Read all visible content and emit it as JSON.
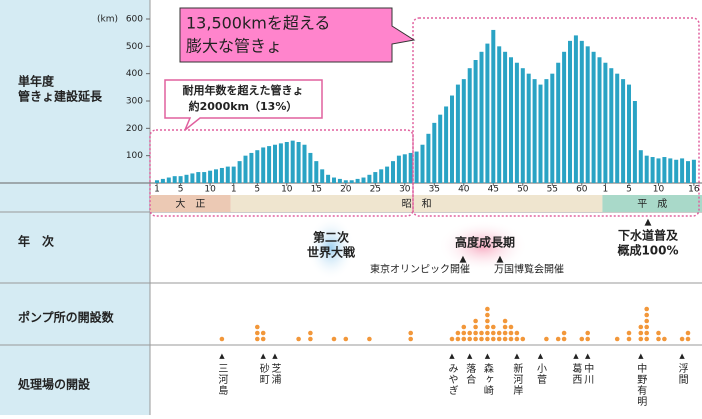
{
  "chart_data": {
    "type": "bar",
    "y_unit": "(km)",
    "row_labels": {
      "length": [
        "単年度",
        "管きょ建設延長"
      ],
      "year": "年　次",
      "pumps": "ポンプ所の開設数",
      "plants": "処理場の開設"
    },
    "categories": [
      "1",
      null,
      null,
      null,
      "5",
      null,
      null,
      null,
      null,
      "10",
      null,
      null,
      null,
      "1",
      null,
      null,
      null,
      "5",
      null,
      null,
      null,
      null,
      "10",
      null,
      null,
      null,
      null,
      "15",
      null,
      null,
      null,
      null,
      "20",
      null,
      null,
      null,
      null,
      "25",
      null,
      null,
      null,
      null,
      "30",
      null,
      null,
      null,
      null,
      "35",
      null,
      null,
      null,
      null,
      "40",
      null,
      null,
      null,
      null,
      "45",
      null,
      null,
      null,
      null,
      "50",
      null,
      null,
      null,
      null,
      "55",
      null,
      null,
      null,
      null,
      "60",
      null,
      null,
      null,
      "1",
      null,
      null,
      null,
      "5",
      null,
      null,
      null,
      null,
      "10",
      null,
      null,
      null,
      null,
      null,
      "16"
    ],
    "values": [
      10,
      15,
      20,
      25,
      25,
      30,
      35,
      40,
      40,
      45,
      50,
      55,
      60,
      60,
      80,
      100,
      110,
      120,
      130,
      135,
      140,
      145,
      150,
      155,
      150,
      140,
      110,
      80,
      50,
      30,
      20,
      15,
      10,
      10,
      15,
      20,
      30,
      40,
      50,
      60,
      80,
      100,
      105,
      110,
      115,
      140,
      180,
      220,
      250,
      280,
      320,
      360,
      380,
      420,
      450,
      480,
      510,
      560,
      500,
      480,
      460,
      440,
      420,
      400,
      380,
      360,
      380,
      400,
      440,
      480,
      520,
      540,
      520,
      500,
      480,
      460,
      440,
      420,
      400,
      380,
      360,
      300,
      120,
      100,
      95,
      90,
      95,
      90,
      85,
      90,
      80,
      85
    ],
    "color": "#2aa3c4",
    "ylim": [
      0,
      600
    ],
    "yticks": [
      100,
      200,
      300,
      400,
      500,
      600
    ],
    "eras": [
      "大　正",
      "昭　和",
      "平　成"
    ],
    "era_colors": [
      "#ecc9b4",
      "#efe5cf",
      "#a9d9c9"
    ],
    "pump_counts": [
      0,
      0,
      0,
      0,
      0,
      0,
      0,
      0,
      0,
      0,
      0,
      1,
      0,
      0,
      0,
      0,
      0,
      3,
      2,
      0,
      0,
      0,
      0,
      0,
      1,
      0,
      2,
      0,
      0,
      0,
      1,
      0,
      1,
      0,
      0,
      0,
      1,
      0,
      0,
      0,
      0,
      0,
      0,
      2,
      0,
      0,
      0,
      0,
      0,
      0,
      1,
      2,
      3,
      2,
      4,
      2,
      6,
      3,
      2,
      4,
      3,
      2,
      1,
      0,
      0,
      0,
      1,
      0,
      1,
      2,
      0,
      0,
      1,
      2,
      0,
      0,
      0,
      0,
      1,
      0,
      2,
      0,
      3,
      6,
      0,
      2,
      1,
      0,
      0,
      1,
      2,
      0
    ],
    "pump_color": "#f2973a",
    "plants": [
      null,
      null,
      null,
      null,
      null,
      null,
      null,
      null,
      null,
      null,
      null,
      "三河島",
      null,
      null,
      null,
      null,
      null,
      null,
      "砂町",
      null,
      "芝浦",
      null,
      null,
      null,
      null,
      null,
      null,
      null,
      null,
      null,
      null,
      null,
      null,
      null,
      null,
      null,
      null,
      null,
      null,
      null,
      null,
      null,
      null,
      null,
      null,
      null,
      null,
      null,
      null,
      null,
      "みやぎ",
      null,
      null,
      "落合",
      null,
      null,
      "森ヶ崎",
      null,
      null,
      null,
      null,
      "新河岸",
      null,
      null,
      null,
      "小菅",
      null,
      null,
      null,
      null,
      null,
      "葛西",
      null,
      "中川",
      null,
      null,
      null,
      null,
      null,
      null,
      null,
      null,
      "中野有明",
      null,
      null,
      null,
      null,
      null,
      null,
      "浮間",
      null,
      null
    ],
    "annotations": {
      "big_callout": [
        "13,500kmを超える",
        "膨大な管きょ"
      ],
      "small_callout": [
        "耐用年数を超えた管きょ",
        "約2000km（13%）"
      ],
      "war": [
        "第二次",
        "世界大戦"
      ],
      "growth": "高度成長期",
      "olympics": "東京オリンピック開催",
      "expo": "万国博覧会開催",
      "coverage": [
        "下水道普及",
        "概成100%"
      ]
    }
  }
}
